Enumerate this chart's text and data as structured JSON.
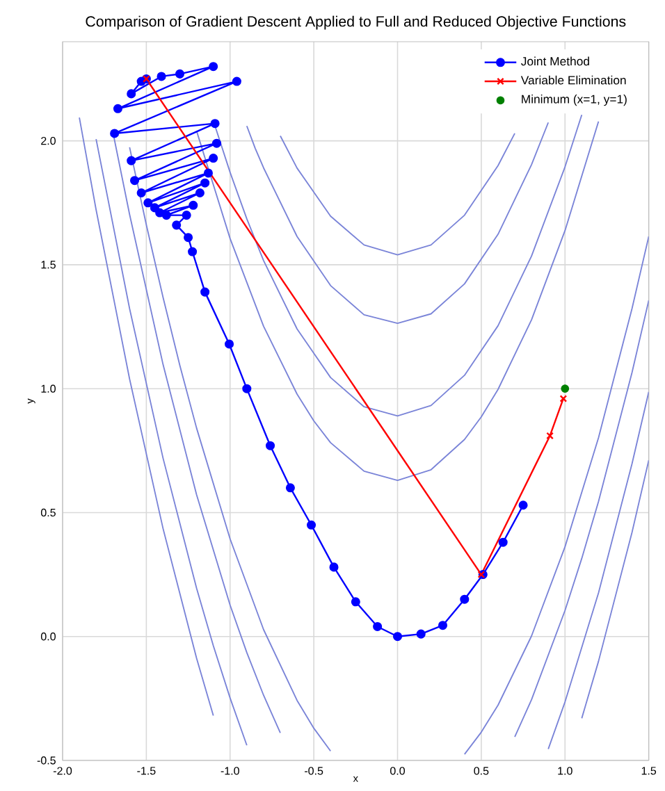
{
  "chart_data": {
    "type": "line",
    "title": "Comparison of Gradient Descent Applied to Full and Reduced Objective Functions",
    "xlabel": "x",
    "ylabel": "y",
    "xlim": [
      -2.0,
      1.5
    ],
    "ylim": [
      -0.5,
      2.4
    ],
    "xticks": [
      {
        "value": -2.0,
        "label": "-2.0"
      },
      {
        "value": -1.5,
        "label": "-1.5"
      },
      {
        "value": -1.0,
        "label": "-1.0"
      },
      {
        "value": -0.5,
        "label": "-0.5"
      },
      {
        "value": 0.0,
        "label": "0.0"
      },
      {
        "value": 0.5,
        "label": "0.5"
      },
      {
        "value": 1.0,
        "label": "1.0"
      },
      {
        "value": 1.5,
        "label": "1.5"
      }
    ],
    "yticks": [
      {
        "value": -0.5,
        "label": "-0.5"
      },
      {
        "value": 0.0,
        "label": "0.0"
      },
      {
        "value": 0.5,
        "label": "0.5"
      },
      {
        "value": 1.0,
        "label": "1.0"
      },
      {
        "value": 1.5,
        "label": "1.5"
      },
      {
        "value": 2.0,
        "label": "2.0"
      }
    ],
    "grid": true,
    "legend": "top right",
    "line_style": "solid",
    "series": [
      {
        "color": "#7a84d8",
        "x": [
          -1.2,
          -1.0,
          -0.8,
          -0.6,
          -0.5,
          -0.4,
          -0.2,
          0.0,
          0.2,
          0.4,
          0.5,
          0.6,
          0.8,
          1.0,
          1.2
        ],
        "values": [
          2.04,
          1.606,
          1.252,
          0.978,
          0.87,
          0.782,
          0.667,
          0.63,
          0.673,
          0.795,
          0.886,
          0.997,
          1.278,
          1.638,
          2.078
        ]
      },
      {
        "color": "#7a84d8",
        "x": [
          -1.6,
          -1.5,
          -1.4,
          -1.3,
          -1.2,
          -1.0,
          -0.8,
          -0.6,
          -0.5,
          -0.4,
          0.0,
          0.4,
          0.5,
          0.6,
          0.8,
          1.0,
          1.2,
          1.4,
          1.5
        ],
        "values": [
          1.974,
          1.661,
          1.368,
          1.094,
          0.841,
          0.394,
          0.028,
          -0.258,
          -0.37,
          -0.462,
          null,
          -0.475,
          -0.386,
          -0.277,
          0.002,
          0.362,
          0.802,
          1.323,
          1.614
        ]
      },
      {
        "color": "#7a84d8",
        "x": [
          -1.1,
          -1.0,
          -0.9,
          -0.8,
          -0.6,
          -0.4,
          -0.2,
          0.0,
          0.2,
          0.4,
          0.6,
          0.8,
          1.0,
          1.1
        ],
        "values": [
          2.081,
          1.873,
          1.685,
          1.517,
          1.241,
          1.045,
          0.927,
          0.89,
          0.932,
          1.054,
          1.254,
          1.535,
          1.895,
          2.105
        ]
      },
      {
        "color": "#7a84d8",
        "x": [
          -1.7,
          -1.6,
          -1.4,
          -1.2,
          -1.0,
          -0.9,
          -0.8,
          -0.7,
          0.0,
          0.7,
          0.8,
          1.0,
          1.1,
          1.2,
          1.4,
          1.5
        ],
        "values": [
          2.036,
          1.703,
          1.097,
          0.572,
          0.127,
          -0.065,
          -0.237,
          -0.389,
          null,
          -0.405,
          -0.255,
          0.105,
          0.315,
          0.545,
          1.065,
          1.356
        ]
      },
      {
        "color": "#7a84d8",
        "x": [
          -0.9,
          -0.85,
          -0.8,
          -0.6,
          -0.4,
          -0.2,
          0.0,
          0.2,
          0.4,
          0.6,
          0.8,
          0.9
        ],
        "values": [
          2.06,
          1.97,
          1.891,
          1.614,
          1.416,
          1.298,
          1.264,
          1.302,
          1.423,
          1.623,
          1.904,
          2.074
        ]
      },
      {
        "color": "#7a84d8",
        "x": [
          -1.8,
          -1.6,
          -1.4,
          -1.2,
          -1.1,
          -1.0,
          -0.9,
          0.0,
          0.9,
          1.0,
          1.2,
          1.4,
          1.5
        ],
        "values": [
          2.007,
          1.323,
          0.719,
          0.195,
          -0.037,
          -0.248,
          -0.439,
          null,
          -0.454,
          -0.264,
          0.176,
          0.697,
          0.987
        ]
      },
      {
        "color": "#7a84d8",
        "x": [
          -0.7,
          -0.6,
          -0.4,
          -0.2,
          0.0,
          0.2,
          0.4,
          0.6,
          0.7
        ],
        "values": [
          2.02,
          1.89,
          1.696,
          1.58,
          1.54,
          1.58,
          1.7,
          1.9,
          2.03
        ]
      },
      {
        "color": "#7a84d8",
        "x": [
          -1.9,
          -1.8,
          -1.6,
          -1.4,
          -1.2,
          -1.1,
          0.0,
          1.1,
          1.2,
          1.4,
          1.5
        ],
        "values": [
          2.094,
          1.722,
          1.039,
          0.435,
          -0.088,
          -0.319,
          null,
          -0.33,
          -0.1,
          0.42,
          0.711
        ]
      },
      {
        "name": "Joint Method",
        "color": "#0000ff",
        "marker": "circle",
        "x": [
          -1.5,
          -1.53,
          -1.59,
          -1.41,
          -1.3,
          -1.1,
          -1.67,
          -0.96,
          -1.69,
          -1.09,
          -1.59,
          -1.08,
          -1.57,
          -1.1,
          -1.53,
          -1.13,
          -1.49,
          -1.15,
          -1.45,
          -1.18,
          -1.42,
          -1.22,
          -1.38,
          -1.26,
          -1.32,
          -1.25,
          -1.225,
          -1.15,
          -1.005,
          -0.9,
          -0.76,
          -0.64,
          -0.515,
          -0.38,
          -0.25,
          -0.12,
          0.0,
          0.14,
          0.27,
          0.4,
          0.51,
          0.63,
          0.75
        ],
        "values": [
          2.25,
          2.24,
          2.19,
          2.26,
          2.27,
          2.3,
          2.13,
          2.24,
          2.03,
          2.07,
          1.92,
          1.99,
          1.84,
          1.93,
          1.79,
          1.87,
          1.75,
          1.83,
          1.73,
          1.79,
          1.71,
          1.74,
          1.7,
          1.7,
          1.66,
          1.61,
          1.553,
          1.39,
          1.18,
          1.0,
          0.77,
          0.6,
          0.45,
          0.28,
          0.14,
          0.04,
          0.0,
          0.01,
          0.045,
          0.15,
          0.25,
          0.38,
          0.53
        ]
      },
      {
        "name": "Variable Elimination",
        "color": "#ff0000",
        "marker": "cross",
        "x": [
          -1.5,
          0.5,
          0.91,
          0.99
        ],
        "values": [
          2.25,
          0.25,
          0.81,
          0.96
        ]
      },
      {
        "name": "Minimum (x=1, y=1)",
        "type": "scatter",
        "color": "#008000",
        "marker": "circle",
        "x": [
          1.0
        ],
        "values": [
          1.0
        ]
      }
    ]
  }
}
